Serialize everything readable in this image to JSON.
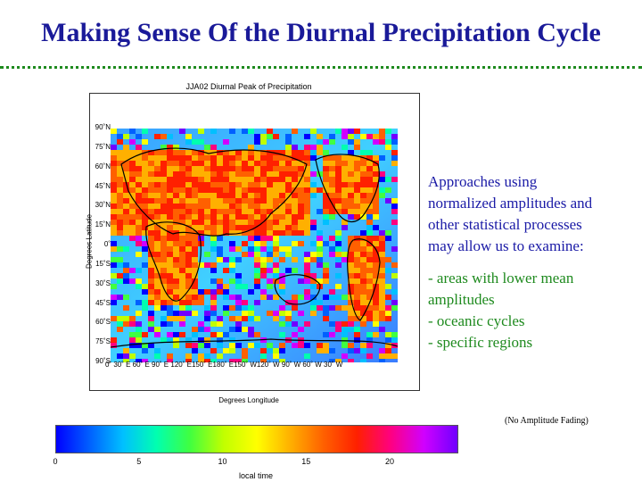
{
  "slide": {
    "title": "Making Sense Of the Diurnal Precipitation Cycle",
    "note": "(No Amplitude Fading)"
  },
  "figure": {
    "title": "JJA02 Diurnal Peak of Precipitation",
    "ylabel": "Degrees Latitude",
    "xlabel": "Degrees Longitude",
    "yticks": [
      "90˚N",
      "75˚N",
      "60˚N",
      "45˚N",
      "30˚N",
      "15˚N",
      "0˚",
      "15˚S",
      "30˚S",
      "45˚S",
      "60˚S",
      "75˚S",
      "90˚S"
    ],
    "xticks": "0˚  30˚ E  60˚ E  90˚ E 120˚ E150˚ E180˚ E150˚ W120˚ W 90˚ W 60˚ W 30˚ W"
  },
  "text": {
    "line1": "Approaches using",
    "line2": "normalized amplitudes and",
    "line3": "other statistical processes",
    "line4": "may allow us to examine:",
    "bullet1a": "- areas with lower mean",
    "bullet1b": "amplitudes",
    "bullet2": "- oceanic cycles",
    "bullet3": "- specific regions"
  },
  "colorbar": {
    "ticks": [
      "0",
      "5",
      "10",
      "15",
      "20"
    ],
    "label": "local time",
    "colors": [
      "#0000ff",
      "#0060ff",
      "#00c0ff",
      "#00ffb0",
      "#40ff40",
      "#c0ff00",
      "#ffff00",
      "#ffb000",
      "#ff6000",
      "#ff2000",
      "#ff0080",
      "#d000ff",
      "#7000ff"
    ]
  },
  "palette": {
    "title": "#1a1a99",
    "text_blue": "#1a1aa6",
    "text_green": "#1e8a1e"
  }
}
